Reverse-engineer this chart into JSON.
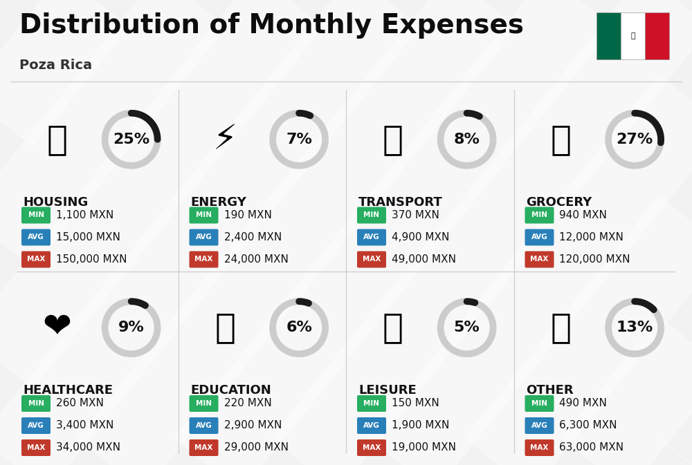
{
  "title": "Distribution of Monthly Expenses",
  "subtitle": "Poza Rica",
  "background_color": "#f2f2f2",
  "categories": [
    {
      "name": "HOUSING",
      "percent": 25,
      "min_val": "1,100 MXN",
      "avg_val": "15,000 MXN",
      "max_val": "150,000 MXN",
      "row": 0,
      "col": 0
    },
    {
      "name": "ENERGY",
      "percent": 7,
      "min_val": "190 MXN",
      "avg_val": "2,400 MXN",
      "max_val": "24,000 MXN",
      "row": 0,
      "col": 1
    },
    {
      "name": "TRANSPORT",
      "percent": 8,
      "min_val": "370 MXN",
      "avg_val": "4,900 MXN",
      "max_val": "49,000 MXN",
      "row": 0,
      "col": 2
    },
    {
      "name": "GROCERY",
      "percent": 27,
      "min_val": "940 MXN",
      "avg_val": "12,000 MXN",
      "max_val": "120,000 MXN",
      "row": 0,
      "col": 3
    },
    {
      "name": "HEALTHCARE",
      "percent": 9,
      "min_val": "260 MXN",
      "avg_val": "3,400 MXN",
      "max_val": "34,000 MXN",
      "row": 1,
      "col": 0
    },
    {
      "name": "EDUCATION",
      "percent": 6,
      "min_val": "220 MXN",
      "avg_val": "2,900 MXN",
      "max_val": "29,000 MXN",
      "row": 1,
      "col": 1
    },
    {
      "name": "LEISURE",
      "percent": 5,
      "min_val": "150 MXN",
      "avg_val": "1,900 MXN",
      "max_val": "19,000 MXN",
      "row": 1,
      "col": 2
    },
    {
      "name": "OTHER",
      "percent": 13,
      "min_val": "490 MXN",
      "avg_val": "6,300 MXN",
      "max_val": "63,000 MXN",
      "row": 1,
      "col": 3
    }
  ],
  "color_min": "#27ae60",
  "color_avg": "#2980b9",
  "color_max": "#c0392b",
  "title_fontsize": 28,
  "subtitle_fontsize": 14,
  "label_fontsize": 11,
  "pct_fontsize": 16,
  "cat_fontsize": 12,
  "name_fontsize": 13
}
